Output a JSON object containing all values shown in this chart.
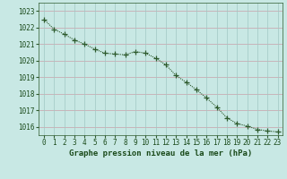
{
  "x": [
    0,
    1,
    2,
    3,
    4,
    5,
    6,
    7,
    8,
    9,
    10,
    11,
    12,
    13,
    14,
    15,
    16,
    17,
    18,
    19,
    20,
    21,
    22,
    23
  ],
  "y": [
    1022.5,
    1021.9,
    1021.6,
    1021.25,
    1021.0,
    1020.7,
    1020.45,
    1020.4,
    1020.35,
    1020.55,
    1020.45,
    1020.15,
    1019.75,
    1019.1,
    1018.7,
    1018.25,
    1017.75,
    1017.2,
    1016.55,
    1016.2,
    1016.05,
    1015.85,
    1015.75,
    1015.7
  ],
  "line_color": "#2d5a2d",
  "marker_color": "#2d5a2d",
  "bg_color": "#c8e8e4",
  "grid_color_h": "#c8a0a8",
  "grid_color_v": "#a0c8c4",
  "label_bg_color": "#c8e8e4",
  "bottom_bar_bg": "#c8e8e4",
  "title": "Graphe pression niveau de la mer (hPa)",
  "xlim": [
    -0.5,
    23.5
  ],
  "ylim": [
    1015.5,
    1023.5
  ],
  "yticks": [
    1016,
    1017,
    1018,
    1019,
    1020,
    1021,
    1022,
    1023
  ],
  "xticks": [
    0,
    1,
    2,
    3,
    4,
    5,
    6,
    7,
    8,
    9,
    10,
    11,
    12,
    13,
    14,
    15,
    16,
    17,
    18,
    19,
    20,
    21,
    22,
    23
  ],
  "title_fontsize": 6.5,
  "tick_fontsize": 5.5,
  "title_color": "#1a4a1a",
  "tick_color": "#1a4a1a",
  "line_width": 0.8,
  "marker_size": 4
}
